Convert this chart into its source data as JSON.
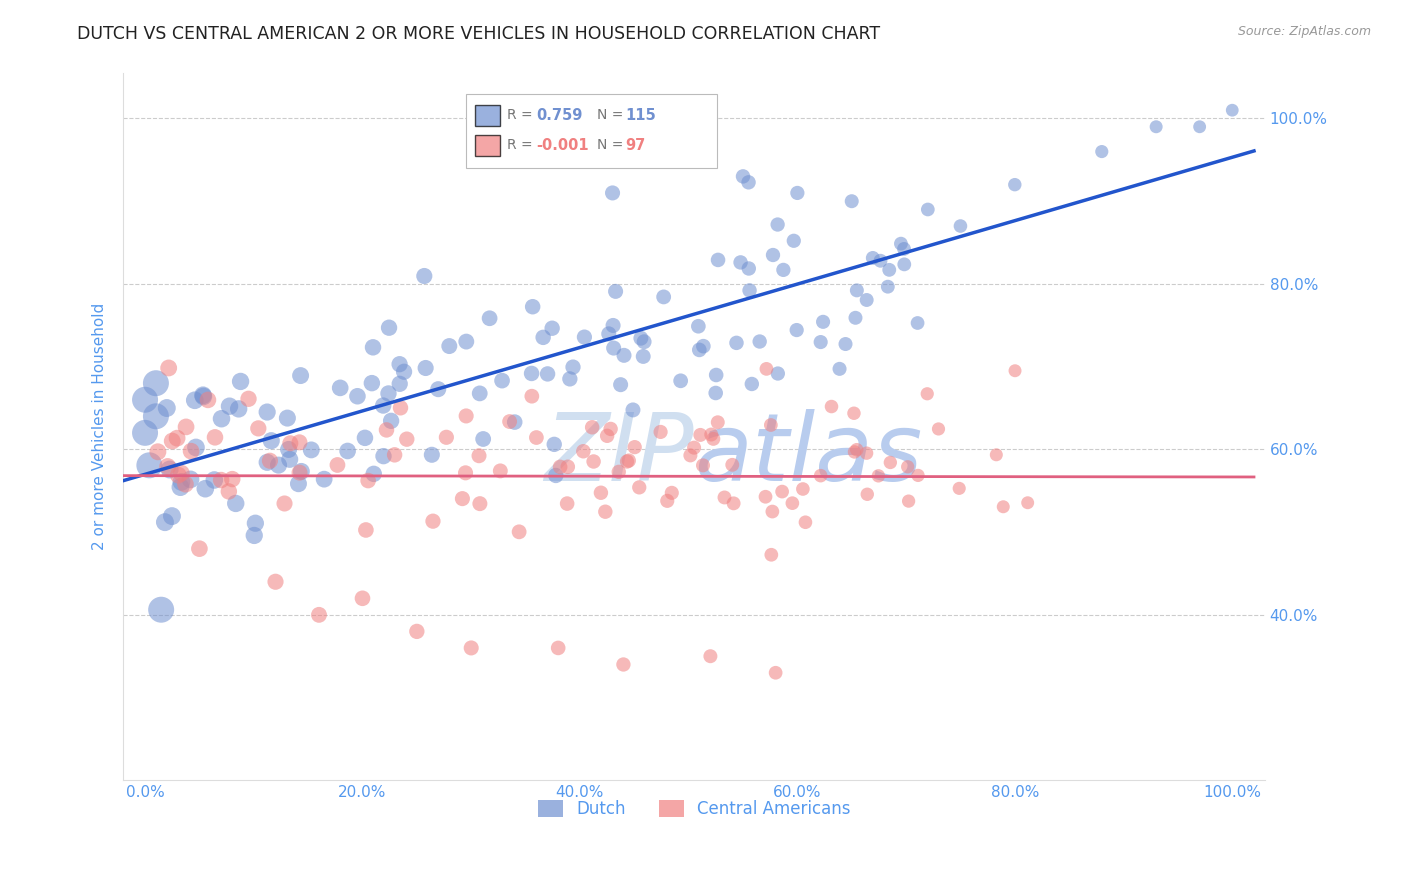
{
  "title": "DUTCH VS CENTRAL AMERICAN 2 OR MORE VEHICLES IN HOUSEHOLD CORRELATION CHART",
  "source": "Source: ZipAtlas.com",
  "ylabel": "2 or more Vehicles in Household",
  "dutch_R": 0.759,
  "dutch_N": 115,
  "central_R": -0.001,
  "central_N": 97,
  "dutch_color": "#7090d0",
  "central_color": "#f08080",
  "dutch_line_color": "#2255cc",
  "central_line_color": "#e06080",
  "background_color": "#ffffff",
  "grid_color": "#cccccc",
  "title_color": "#222222",
  "tick_color": "#5599ee",
  "watermark_color": "#d0dff0"
}
